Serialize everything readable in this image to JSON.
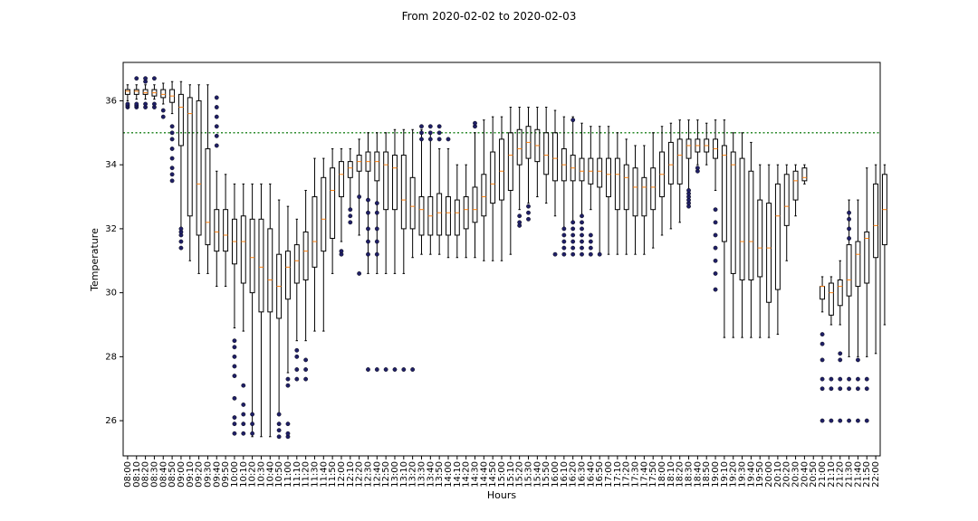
{
  "chart_data": {
    "type": "box",
    "title": "From 2020-02-02 to 2020-02-03",
    "xlabel": "Hours",
    "ylabel": "Temperature",
    "ylim": [
      24.9,
      37.2
    ],
    "yticks": [
      26,
      28,
      30,
      32,
      34,
      36
    ],
    "threshold": 35.0,
    "threshold_color": "#2e8b2e",
    "median_color": "#ff7f0e",
    "outlier_color": "#1f1f66",
    "grid": false,
    "categories": [
      "08:00",
      "08:10",
      "08:20",
      "08:30",
      "08:40",
      "08:50",
      "09:00",
      "09:10",
      "09:20",
      "09:30",
      "09:40",
      "09:50",
      "10:00",
      "10:10",
      "10:20",
      "10:30",
      "10:40",
      "10:50",
      "11:00",
      "11:10",
      "11:20",
      "11:30",
      "11:40",
      "11:50",
      "12:00",
      "12:10",
      "12:20",
      "12:30",
      "12:40",
      "12:50",
      "13:00",
      "13:10",
      "13:20",
      "13:30",
      "13:40",
      "13:50",
      "14:00",
      "14:10",
      "14:20",
      "14:30",
      "14:40",
      "14:50",
      "15:00",
      "15:10",
      "15:20",
      "15:30",
      "15:40",
      "15:50",
      "16:00",
      "16:10",
      "16:20",
      "16:30",
      "16:40",
      "16:50",
      "17:00",
      "17:10",
      "17:20",
      "17:30",
      "17:40",
      "17:50",
      "18:00",
      "18:10",
      "18:20",
      "18:30",
      "18:40",
      "18:50",
      "19:00",
      "19:10",
      "19:20",
      "19:30",
      "19:40",
      "19:50",
      "20:00",
      "20:10",
      "20:20",
      "20:30",
      "20:40",
      "20:50",
      "21:00",
      "21:10",
      "21:20",
      "21:30",
      "21:40",
      "21:50",
      "22:00"
    ],
    "boxes": [
      {
        "min": 36.0,
        "q1": 36.2,
        "med": 36.3,
        "q3": 36.35,
        "max": 36.5,
        "outliers": [
          35.8,
          35.85,
          35.9
        ]
      },
      {
        "min": 36.05,
        "q1": 36.2,
        "med": 36.3,
        "q3": 36.35,
        "max": 36.5,
        "outliers": [
          35.8,
          35.85,
          35.9,
          36.7
        ]
      },
      {
        "min": 36.05,
        "q1": 36.2,
        "med": 36.25,
        "q3": 36.35,
        "max": 36.5,
        "outliers": [
          35.8,
          35.9,
          36.6,
          36.7
        ]
      },
      {
        "min": 36.05,
        "q1": 36.15,
        "med": 36.25,
        "q3": 36.35,
        "max": 36.5,
        "outliers": [
          35.8,
          35.9,
          36.7
        ]
      },
      {
        "min": 35.9,
        "q1": 36.1,
        "med": 36.2,
        "q3": 36.35,
        "max": 36.55,
        "outliers": [
          35.5,
          35.7
        ]
      },
      {
        "min": 35.6,
        "q1": 35.95,
        "med": 36.15,
        "q3": 36.35,
        "max": 36.6,
        "outliers": [
          33.5,
          33.7,
          33.9,
          34.2,
          34.5,
          34.8,
          35.0,
          35.2
        ]
      },
      {
        "min": 32.0,
        "q1": 34.6,
        "med": 35.8,
        "q3": 36.2,
        "max": 36.6,
        "outliers": [
          31.4,
          31.6,
          31.8,
          31.9,
          32.0
        ]
      },
      {
        "min": 31.0,
        "q1": 32.4,
        "med": 35.6,
        "q3": 36.1,
        "max": 36.5,
        "outliers": []
      },
      {
        "min": 30.6,
        "q1": 31.8,
        "med": 33.4,
        "q3": 36.0,
        "max": 36.5,
        "outliers": []
      },
      {
        "min": 30.6,
        "q1": 31.5,
        "med": 32.2,
        "q3": 34.5,
        "max": 36.5,
        "outliers": []
      },
      {
        "min": 30.2,
        "q1": 31.3,
        "med": 31.9,
        "q3": 32.6,
        "max": 33.8,
        "outliers": [
          34.6,
          34.9,
          35.2,
          35.5,
          35.8,
          36.1
        ]
      },
      {
        "min": 30.2,
        "q1": 31.3,
        "med": 31.8,
        "q3": 32.6,
        "max": 33.7,
        "outliers": []
      },
      {
        "min": 28.9,
        "q1": 30.9,
        "med": 31.6,
        "q3": 32.3,
        "max": 33.4,
        "outliers": [
          25.6,
          25.9,
          26.1,
          26.7,
          27.4,
          27.7,
          28.0,
          28.3,
          28.5
        ]
      },
      {
        "min": 28.8,
        "q1": 30.3,
        "med": 31.6,
        "q3": 32.4,
        "max": 33.4,
        "outliers": [
          25.6,
          25.9,
          26.2,
          26.5,
          27.1
        ]
      },
      {
        "min": 25.5,
        "q1": 30.0,
        "med": 31.1,
        "q3": 32.3,
        "max": 33.4,
        "outliers": [
          25.6,
          25.9,
          26.2
        ]
      },
      {
        "min": 25.5,
        "q1": 29.4,
        "med": 30.8,
        "q3": 32.3,
        "max": 33.4,
        "outliers": []
      },
      {
        "min": 25.5,
        "q1": 29.4,
        "med": 30.4,
        "q3": 32.0,
        "max": 33.4,
        "outliers": []
      },
      {
        "min": 26.2,
        "q1": 29.2,
        "med": 30.2,
        "q3": 31.2,
        "max": 32.9,
        "outliers": [
          25.5,
          25.7,
          25.9,
          26.2
        ]
      },
      {
        "min": 27.5,
        "q1": 29.8,
        "med": 30.8,
        "q3": 31.3,
        "max": 32.7,
        "outliers": [
          25.5,
          25.6,
          25.9,
          27.1,
          27.3
        ]
      },
      {
        "min": 28.5,
        "q1": 30.3,
        "med": 31.0,
        "q3": 31.5,
        "max": 32.3,
        "outliers": [
          27.3,
          27.6,
          28.0,
          28.2
        ]
      },
      {
        "min": 28.5,
        "q1": 30.4,
        "med": 31.3,
        "q3": 31.9,
        "max": 33.2,
        "outliers": [
          27.3,
          27.6,
          27.9
        ]
      },
      {
        "min": 28.8,
        "q1": 30.8,
        "med": 31.6,
        "q3": 33.0,
        "max": 34.2,
        "outliers": []
      },
      {
        "min": 28.8,
        "q1": 31.3,
        "med": 32.3,
        "q3": 33.6,
        "max": 34.2,
        "outliers": []
      },
      {
        "min": 30.6,
        "q1": 31.7,
        "med": 33.2,
        "q3": 33.9,
        "max": 34.5,
        "outliers": []
      },
      {
        "min": 31.6,
        "q1": 33.0,
        "med": 33.7,
        "q3": 34.1,
        "max": 34.5,
        "outliers": [
          31.2,
          31.3
        ]
      },
      {
        "min": 32.6,
        "q1": 33.6,
        "med": 33.9,
        "q3": 34.1,
        "max": 34.5,
        "outliers": [
          32.2,
          32.4,
          32.6
        ]
      },
      {
        "min": 31.8,
        "q1": 33.8,
        "med": 34.1,
        "q3": 34.3,
        "max": 34.8,
        "outliers": [
          30.6,
          33.0
        ]
      },
      {
        "min": 30.6,
        "q1": 33.8,
        "med": 34.1,
        "q3": 34.4,
        "max": 35.0,
        "outliers": [
          27.6,
          31.2,
          31.6,
          32.0,
          32.5,
          32.9
        ]
      },
      {
        "min": 30.6,
        "q1": 33.5,
        "med": 34.1,
        "q3": 34.4,
        "max": 35.0,
        "outliers": [
          27.6,
          31.2,
          31.6,
          32.0,
          32.5,
          32.8
        ]
      },
      {
        "min": 30.6,
        "q1": 32.6,
        "med": 34.0,
        "q3": 34.4,
        "max": 35.0,
        "outliers": [
          27.6
        ]
      },
      {
        "min": 30.6,
        "q1": 32.6,
        "med": 33.9,
        "q3": 34.3,
        "max": 35.1,
        "outliers": [
          27.6
        ]
      },
      {
        "min": 30.6,
        "q1": 32.0,
        "med": 32.9,
        "q3": 34.3,
        "max": 35.1,
        "outliers": [
          27.6
        ]
      },
      {
        "min": 31.1,
        "q1": 32.0,
        "med": 32.7,
        "q3": 33.6,
        "max": 35.1,
        "outliers": [
          27.6
        ]
      },
      {
        "min": 31.2,
        "q1": 31.8,
        "med": 32.6,
        "q3": 33.0,
        "max": 35.1,
        "outliers": [
          34.8,
          35.0,
          35.2
        ]
      },
      {
        "min": 31.2,
        "q1": 31.8,
        "med": 32.4,
        "q3": 33.0,
        "max": 35.0,
        "outliers": [
          34.8,
          35.0,
          35.2
        ]
      },
      {
        "min": 31.2,
        "q1": 31.8,
        "med": 32.5,
        "q3": 33.1,
        "max": 34.5,
        "outliers": [
          34.8,
          35.0,
          35.2
        ]
      },
      {
        "min": 31.1,
        "q1": 31.8,
        "med": 32.5,
        "q3": 33.0,
        "max": 34.5,
        "outliers": [
          34.8
        ]
      },
      {
        "min": 31.1,
        "q1": 31.8,
        "med": 32.5,
        "q3": 32.9,
        "max": 34.0,
        "outliers": []
      },
      {
        "min": 31.1,
        "q1": 32.0,
        "med": 32.6,
        "q3": 33.0,
        "max": 34.0,
        "outliers": []
      },
      {
        "min": 31.1,
        "q1": 32.2,
        "med": 32.6,
        "q3": 33.3,
        "max": 35.0,
        "outliers": [
          35.2,
          35.3
        ]
      },
      {
        "min": 31.0,
        "q1": 32.4,
        "med": 33.0,
        "q3": 33.7,
        "max": 35.4,
        "outliers": []
      },
      {
        "min": 31.0,
        "q1": 32.8,
        "med": 33.4,
        "q3": 34.4,
        "max": 35.5,
        "outliers": []
      },
      {
        "min": 31.0,
        "q1": 32.9,
        "med": 33.8,
        "q3": 34.8,
        "max": 35.5,
        "outliers": []
      },
      {
        "min": 31.2,
        "q1": 33.2,
        "med": 34.3,
        "q3": 35.0,
        "max": 35.8,
        "outliers": []
      },
      {
        "min": 32.6,
        "q1": 34.0,
        "med": 34.5,
        "q3": 35.1,
        "max": 35.8,
        "outliers": [
          32.1,
          32.2,
          32.4
        ]
      },
      {
        "min": 32.8,
        "q1": 34.2,
        "med": 34.7,
        "q3": 35.2,
        "max": 35.8,
        "outliers": [
          32.3,
          32.5,
          32.7
        ]
      },
      {
        "min": 33.0,
        "q1": 34.1,
        "med": 34.6,
        "q3": 35.1,
        "max": 35.8,
        "outliers": []
      },
      {
        "min": 32.8,
        "q1": 33.7,
        "med": 34.3,
        "q3": 35.0,
        "max": 35.8,
        "outliers": []
      },
      {
        "min": 32.4,
        "q1": 33.5,
        "med": 34.2,
        "q3": 35.0,
        "max": 35.7,
        "outliers": [
          31.2
        ]
      },
      {
        "min": 32.0,
        "q1": 33.5,
        "med": 34.0,
        "q3": 34.5,
        "max": 35.5,
        "outliers": [
          31.2,
          31.4,
          31.6,
          31.8,
          32.0
        ]
      },
      {
        "min": 32.2,
        "q1": 33.5,
        "med": 33.9,
        "q3": 34.3,
        "max": 35.5,
        "outliers": [
          31.2,
          31.4,
          31.6,
          31.8,
          32.0,
          32.2,
          35.4
        ]
      },
      {
        "min": 32.4,
        "q1": 33.5,
        "med": 33.8,
        "q3": 34.2,
        "max": 35.3,
        "outliers": [
          31.2,
          31.4,
          31.6,
          31.8,
          32.0,
          32.2,
          32.4
        ]
      },
      {
        "min": 32.6,
        "q1": 33.4,
        "med": 33.8,
        "q3": 34.2,
        "max": 35.2,
        "outliers": [
          31.2,
          31.4,
          31.6,
          31.8
        ]
      },
      {
        "min": 31.2,
        "q1": 33.3,
        "med": 33.8,
        "q3": 34.2,
        "max": 35.2,
        "outliers": [
          31.2
        ]
      },
      {
        "min": 31.2,
        "q1": 33.0,
        "med": 33.7,
        "q3": 34.2,
        "max": 35.2,
        "outliers": []
      },
      {
        "min": 31.2,
        "q1": 32.6,
        "med": 33.7,
        "q3": 34.2,
        "max": 35.0,
        "outliers": []
      },
      {
        "min": 31.2,
        "q1": 32.6,
        "med": 33.6,
        "q3": 34.0,
        "max": 34.8,
        "outliers": []
      },
      {
        "min": 31.2,
        "q1": 32.4,
        "med": 33.3,
        "q3": 33.9,
        "max": 34.6,
        "outliers": []
      },
      {
        "min": 31.2,
        "q1": 32.4,
        "med": 33.3,
        "q3": 33.6,
        "max": 34.6,
        "outliers": []
      },
      {
        "min": 31.4,
        "q1": 32.6,
        "med": 33.3,
        "q3": 33.9,
        "max": 35.0,
        "outliers": []
      },
      {
        "min": 31.8,
        "q1": 33.0,
        "med": 33.7,
        "q3": 34.4,
        "max": 35.2,
        "outliers": []
      },
      {
        "min": 32.0,
        "q1": 33.4,
        "med": 34.0,
        "q3": 34.7,
        "max": 35.3,
        "outliers": []
      },
      {
        "min": 32.2,
        "q1": 33.4,
        "med": 34.3,
        "q3": 34.8,
        "max": 35.4,
        "outliers": []
      },
      {
        "min": 33.2,
        "q1": 34.2,
        "med": 34.6,
        "q3": 34.8,
        "max": 35.4,
        "outliers": [
          32.7,
          32.8,
          32.9,
          33.0,
          33.1,
          33.2
        ]
      },
      {
        "min": 34.0,
        "q1": 34.4,
        "med": 34.6,
        "q3": 34.8,
        "max": 35.4,
        "outliers": [
          33.8,
          33.9
        ]
      },
      {
        "min": 34.0,
        "q1": 34.4,
        "med": 34.6,
        "q3": 34.8,
        "max": 35.3,
        "outliers": []
      },
      {
        "min": 33.2,
        "q1": 34.2,
        "med": 34.5,
        "q3": 34.8,
        "max": 35.4,
        "outliers": [
          30.1,
          30.6,
          31.0,
          31.4,
          31.8,
          32.2,
          32.6
        ]
      },
      {
        "min": 28.6,
        "q1": 31.6,
        "med": 34.3,
        "q3": 34.6,
        "max": 35.4,
        "outliers": []
      },
      {
        "min": 28.6,
        "q1": 30.6,
        "med": 34.0,
        "q3": 34.4,
        "max": 35.0,
        "outliers": []
      },
      {
        "min": 28.6,
        "q1": 30.4,
        "med": 31.6,
        "q3": 34.2,
        "max": 35.0,
        "outliers": []
      },
      {
        "min": 28.6,
        "q1": 30.4,
        "med": 31.6,
        "q3": 33.8,
        "max": 34.7,
        "outliers": []
      },
      {
        "min": 28.6,
        "q1": 30.5,
        "med": 31.4,
        "q3": 32.9,
        "max": 34.0,
        "outliers": []
      },
      {
        "min": 28.6,
        "q1": 29.7,
        "med": 31.4,
        "q3": 32.8,
        "max": 34.0,
        "outliers": []
      },
      {
        "min": 28.7,
        "q1": 30.1,
        "med": 32.4,
        "q3": 33.4,
        "max": 34.0,
        "outliers": []
      },
      {
        "min": 31.0,
        "q1": 32.1,
        "med": 32.7,
        "q3": 33.7,
        "max": 34.0,
        "outliers": []
      },
      {
        "min": 32.4,
        "q1": 32.9,
        "med": 33.5,
        "q3": 33.8,
        "max": 34.0,
        "outliers": []
      },
      {
        "min": 33.4,
        "q1": 33.5,
        "med": 33.6,
        "q3": 33.9,
        "max": 34.0,
        "outliers": []
      },
      {
        "min": null,
        "q1": null,
        "med": null,
        "q3": null,
        "max": null,
        "outliers": []
      },
      {
        "min": 29.4,
        "q1": 29.8,
        "med": 30.2,
        "q3": 30.2,
        "max": 30.5,
        "outliers": [
          26.0,
          27.0,
          27.3,
          27.9,
          28.4,
          28.7
        ]
      },
      {
        "min": 29.0,
        "q1": 29.3,
        "med": 30.0,
        "q3": 30.3,
        "max": 30.5,
        "outliers": [
          26.0,
          27.0,
          27.3
        ]
      },
      {
        "min": 29.0,
        "q1": 29.6,
        "med": 30.2,
        "q3": 30.4,
        "max": 31.0,
        "outliers": [
          26.0,
          27.0,
          27.3,
          27.9,
          28.1
        ]
      },
      {
        "min": 28.0,
        "q1": 29.9,
        "med": 30.4,
        "q3": 31.5,
        "max": 32.9,
        "outliers": [
          26.0,
          27.0,
          27.3,
          31.7,
          32.0,
          32.3,
          32.5
        ]
      },
      {
        "min": 28.0,
        "q1": 30.2,
        "med": 31.2,
        "q3": 31.6,
        "max": 32.9,
        "outliers": [
          26.0,
          27.0,
          27.3,
          27.9
        ]
      },
      {
        "min": 28.0,
        "q1": 30.3,
        "med": 31.7,
        "q3": 31.9,
        "max": 33.9,
        "outliers": [
          26.0,
          27.0,
          27.3
        ]
      },
      {
        "min": 28.1,
        "q1": 31.1,
        "med": 32.1,
        "q3": 33.4,
        "max": 34.0,
        "outliers": []
      },
      {
        "min": 29.0,
        "q1": 31.5,
        "med": 32.6,
        "q3": 33.7,
        "max": 34.0,
        "outliers": []
      }
    ]
  }
}
